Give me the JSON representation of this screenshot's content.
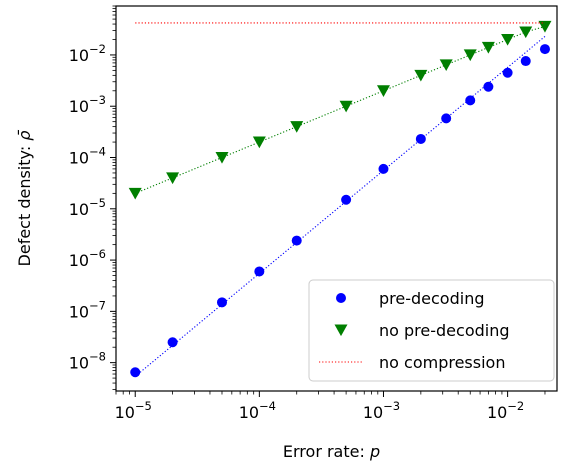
{
  "chart_data": {
    "type": "scatter",
    "x_scale": "log",
    "y_scale": "log",
    "xlabel": "Error rate: ",
    "xlabel_var": "p",
    "ylabel": "Defect density: ",
    "ylabel_var": "ρ̄",
    "xlim": [
      7e-06,
      0.025
    ],
    "ylim": [
      2.8e-09,
      0.09
    ],
    "x_ticks": [
      {
        "value": 1e-05,
        "base": "10",
        "exp": "−5"
      },
      {
        "value": 0.0001,
        "base": "10",
        "exp": "−4"
      },
      {
        "value": 0.001,
        "base": "10",
        "exp": "−3"
      },
      {
        "value": 0.01,
        "base": "10",
        "exp": "−2"
      }
    ],
    "y_ticks": [
      {
        "value": 1e-08,
        "base": "10",
        "exp": "−8"
      },
      {
        "value": 1e-07,
        "base": "10",
        "exp": "−7"
      },
      {
        "value": 1e-06,
        "base": "10",
        "exp": "−6"
      },
      {
        "value": 1e-05,
        "base": "10",
        "exp": "−5"
      },
      {
        "value": 0.0001,
        "base": "10",
        "exp": "−4"
      },
      {
        "value": 0.001,
        "base": "10",
        "exp": "−3"
      },
      {
        "value": 0.01,
        "base": "10",
        "exp": "−2"
      }
    ],
    "legend_position": "bottom-right",
    "series": [
      {
        "name": "pre-decoding",
        "marker": "circle",
        "color": "#0000ff",
        "x": [
          1e-05,
          2e-05,
          5e-05,
          0.0001,
          0.0002,
          0.0005,
          0.001,
          0.002,
          0.0032,
          0.005,
          0.007,
          0.01,
          0.014,
          0.02
        ],
        "y": [
          6.5e-09,
          2.5e-08,
          1.5e-07,
          6e-07,
          2.4e-06,
          1.5e-05,
          6e-05,
          0.00023,
          0.00058,
          0.0013,
          0.0024,
          0.0045,
          0.0076,
          0.013
        ],
        "fit": {
          "x": [
            1e-05,
            0.02
          ],
          "y": [
            5.4e-09,
            0.023
          ],
          "style": "dotted"
        }
      },
      {
        "name": "no pre-decoding",
        "marker": "triangle-down",
        "color": "#007f00",
        "x": [
          1e-05,
          2e-05,
          5e-05,
          0.0001,
          0.0002,
          0.0005,
          0.001,
          0.002,
          0.0032,
          0.005,
          0.007,
          0.01,
          0.014,
          0.02
        ],
        "y": [
          2e-05,
          4e-05,
          0.0001,
          0.0002,
          0.0004,
          0.001,
          0.002,
          0.004,
          0.0064,
          0.01,
          0.014,
          0.02,
          0.028,
          0.036
        ],
        "line": "dotted"
      },
      {
        "name": "no compression",
        "marker": "none",
        "color": "#ff0000",
        "line": "dotted",
        "x": [
          1e-05,
          0.02
        ],
        "y": [
          0.042,
          0.042
        ]
      }
    ]
  }
}
